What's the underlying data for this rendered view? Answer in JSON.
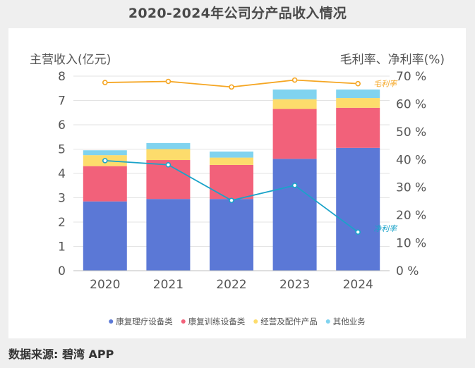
{
  "title": "2020-2024年公司分产品收入情况",
  "source": "数据来源: 碧湾 APP",
  "chart_data": {
    "type": "bar",
    "stacked": true,
    "categories": [
      "2020",
      "2021",
      "2022",
      "2023",
      "2024"
    ],
    "y_left": {
      "label": "主营收入(亿元)",
      "ylim": [
        0,
        8
      ],
      "ticks": [
        "0",
        "1",
        "2",
        "3",
        "4",
        "5",
        "6",
        "7",
        "8"
      ]
    },
    "y_right": {
      "label": "毛利率、净利率(%)",
      "ylim": [
        0,
        70
      ],
      "ticks": [
        "0 %",
        "10 %",
        "20 %",
        "30 %",
        "40 %",
        "50 %",
        "60 %",
        "70 %"
      ]
    },
    "series": [
      {
        "name": "康复理疗设备类",
        "color": "#5b78d6",
        "values": [
          2.85,
          2.95,
          2.95,
          4.6,
          5.05
        ]
      },
      {
        "name": "康复训练设备类",
        "color": "#f2617a",
        "values": [
          1.45,
          1.6,
          1.4,
          2.05,
          1.65
        ]
      },
      {
        "name": "经营及配件产品",
        "color": "#fddc6c",
        "values": [
          0.45,
          0.45,
          0.3,
          0.4,
          0.4
        ]
      },
      {
        "name": "其他业务",
        "color": "#80d3ef",
        "values": [
          0.2,
          0.25,
          0.25,
          0.4,
          0.35
        ]
      }
    ],
    "lines": [
      {
        "name": "毛利率",
        "axis": "right",
        "color": "#f5a623",
        "values": [
          67.7,
          68.1,
          66.1,
          68.6,
          67.3
        ]
      },
      {
        "name": "净利率",
        "axis": "right",
        "color": "#1aa3c9",
        "values": [
          39.6,
          38.1,
          25.3,
          30.7,
          13.9
        ]
      }
    ],
    "legend_position": "bottom",
    "grid": true
  }
}
